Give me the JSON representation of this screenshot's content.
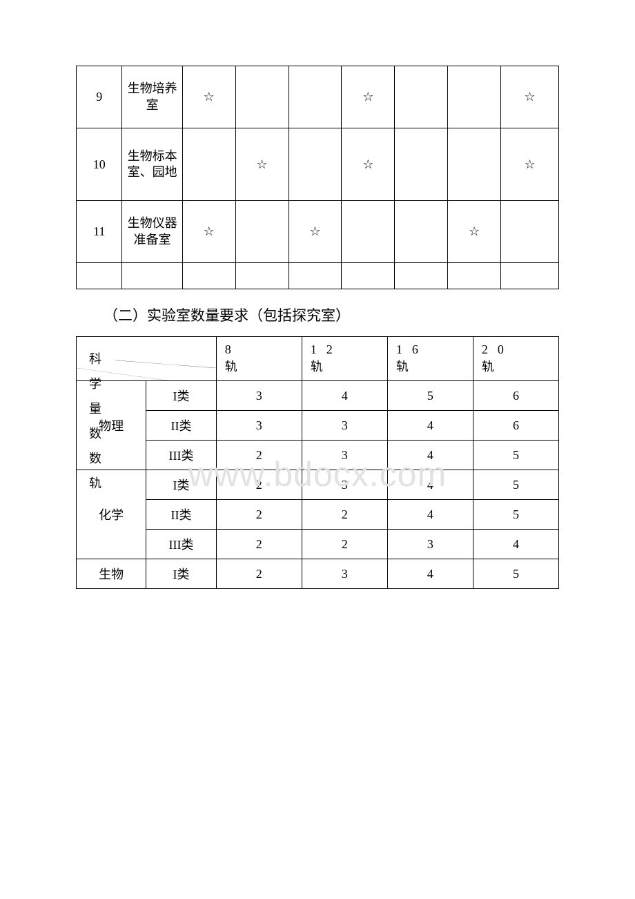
{
  "table1": {
    "col_widths_pct": [
      9.5,
      12.5,
      11,
      11,
      11,
      11,
      11,
      11,
      12
    ],
    "rows": [
      {
        "h": "tall",
        "cells": [
          "9",
          "生物培养室",
          "☆",
          "",
          "",
          "☆",
          "",
          "",
          "☆"
        ]
      },
      {
        "h": "tall2",
        "cells": [
          "10",
          "生物标本室、园地",
          "",
          "☆",
          "",
          "☆",
          "",
          "",
          "☆"
        ]
      },
      {
        "h": "tall",
        "cells": [
          "11",
          "生物仪器准备室",
          "☆",
          "",
          "☆",
          "",
          "",
          "☆",
          ""
        ]
      },
      {
        "h": "empty",
        "cells": [
          "",
          "",
          "",
          "",
          "",
          "",
          "",
          "",
          ""
        ]
      }
    ]
  },
  "section_title": "（二）实验室数量要求（包括探究室）",
  "table2": {
    "header_diag_label": "科\n学\n量\n数\n数\n轨",
    "tracks": [
      "8",
      "12",
      "16",
      "20"
    ],
    "track_suffix": "轨",
    "col1_width_pct": 14.5,
    "col2_width_pct": 14.5,
    "track_width_pct": 17.75,
    "groups": [
      {
        "subject": "物理",
        "rows": [
          {
            "cat": "I类",
            "vals": [
              "3",
              "4",
              "5",
              "6"
            ]
          },
          {
            "cat": "II类",
            "vals": [
              "3",
              "3",
              "4",
              "6"
            ]
          },
          {
            "cat": "III类",
            "vals": [
              "2",
              "3",
              "4",
              "5"
            ]
          }
        ]
      },
      {
        "subject": "化学",
        "rows": [
          {
            "cat": "I类",
            "vals": [
              "2",
              "3",
              "4",
              "5"
            ]
          },
          {
            "cat": "II类",
            "vals": [
              "2",
              "2",
              "4",
              "5"
            ]
          },
          {
            "cat": "III类",
            "vals": [
              "2",
              "2",
              "3",
              "4"
            ]
          }
        ]
      },
      {
        "subject": "生物",
        "rows": [
          {
            "cat": "I类",
            "vals": [
              "2",
              "3",
              "4",
              "5"
            ]
          }
        ]
      }
    ]
  },
  "watermark": "www.bdocx.com",
  "colors": {
    "border": "#000000",
    "text": "#000000",
    "bg": "#ffffff",
    "watermark": "#e2e2e2"
  }
}
